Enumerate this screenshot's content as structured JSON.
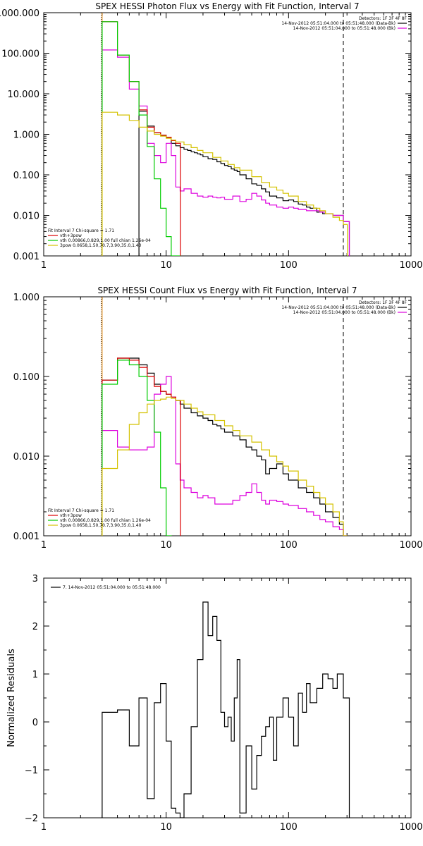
{
  "chart_data": [
    {
      "type": "line",
      "id": "photon",
      "title": "SPEX HESSI Photon Flux vs Energy with Fit Function, Interval 7",
      "xlabel": "",
      "ylabel": "",
      "xscale": "log",
      "yscale": "log",
      "xlim": [
        1,
        1000
      ],
      "ylim": [
        0.001,
        1000
      ],
      "x_ticks": [
        "1",
        "10",
        "100",
        "1000"
      ],
      "y_ticks": [
        "0.001",
        "0.010",
        "0.100",
        "1.000",
        "10.000",
        "100.000",
        "1000.000"
      ],
      "detectors_label": "Detectors: 1F 3F 4F 8F",
      "header_legend": [
        {
          "text": "14-Nov-2012 05:51:04.000 to 05:51:48.000 (Data-Bk)",
          "color": "#000000"
        },
        {
          "text": "14-Nov-2012 05:51:04.000 to 05:51:48.000 (Bk)",
          "color": "#dd00dd"
        }
      ],
      "fit_legend_title": "Fit Interval 7   Chi-square = 1.71",
      "fit_legend": [
        {
          "text": "vth+3pow",
          "color": "#dd0000"
        },
        {
          "text": "vth 0.00866,0.829,1.00  full chian 1.26e-04",
          "color": "#00cc00"
        },
        {
          "text": "3pow 0.0658,1.50,70.7,3.90,35.0,1.40",
          "color": "#d4c200"
        }
      ],
      "vlines": [
        {
          "x": 3,
          "style": "dotted",
          "color": "#000000"
        },
        {
          "x": 3,
          "style": "solid",
          "color": "#e08000"
        },
        {
          "x": 280,
          "style": "dashed",
          "color": "#000000"
        }
      ],
      "series": [
        {
          "name": "Data-Bk",
          "color": "#000000",
          "x": [
            6,
            7,
            8,
            9,
            10,
            11,
            12,
            13,
            14,
            15,
            16,
            17,
            18,
            19,
            20,
            22,
            24,
            26,
            28,
            30,
            32,
            34,
            36,
            38,
            40,
            45,
            50,
            55,
            60,
            65,
            70,
            80,
            90,
            100,
            110,
            120,
            130,
            140,
            150,
            170,
            190,
            210,
            230,
            250,
            280
          ],
          "y": [
            3.7,
            1.6,
            1.1,
            0.95,
            0.85,
            0.6,
            0.52,
            0.47,
            0.43,
            0.4,
            0.37,
            0.35,
            0.33,
            0.31,
            0.28,
            0.25,
            0.24,
            0.21,
            0.19,
            0.17,
            0.16,
            0.14,
            0.13,
            0.12,
            0.1,
            0.08,
            0.06,
            0.055,
            0.045,
            0.038,
            0.03,
            0.027,
            0.023,
            0.024,
            0.022,
            0.019,
            0.018,
            0.016,
            0.015,
            0.012,
            0.011,
            0.011,
            0.01,
            0.01,
            0.007
          ]
        },
        {
          "name": "Bk",
          "color": "#dd00dd",
          "x": [
            3,
            4,
            5,
            6,
            7,
            8,
            9,
            10,
            11,
            12,
            13,
            14,
            16,
            18,
            20,
            22,
            24,
            26,
            28,
            30,
            35,
            40,
            45,
            50,
            55,
            60,
            65,
            70,
            80,
            90,
            100,
            110,
            120,
            140,
            160,
            180,
            200,
            230,
            250,
            280
          ],
          "y": [
            120,
            80,
            13,
            5,
            0.6,
            0.3,
            0.2,
            0.6,
            0.3,
            0.05,
            0.04,
            0.045,
            0.035,
            0.03,
            0.028,
            0.03,
            0.028,
            0.027,
            0.028,
            0.025,
            0.03,
            0.022,
            0.025,
            0.035,
            0.03,
            0.024,
            0.02,
            0.018,
            0.016,
            0.015,
            0.016,
            0.015,
            0.014,
            0.013,
            0.013,
            0.012,
            0.011,
            0.01,
            0.01,
            0.007
          ]
        },
        {
          "name": "vth+3pow",
          "color": "#dd0000",
          "x": [
            3,
            4,
            5,
            6,
            7,
            8,
            9,
            10,
            11,
            12
          ],
          "y": [
            600,
            90,
            20,
            4,
            1.5,
            1.1,
            0.95,
            0.85,
            0.7,
            0.6
          ]
        },
        {
          "name": "vth",
          "color": "#00cc00",
          "x": [
            3,
            4,
            5,
            6,
            7,
            8,
            9,
            10,
            11,
            12
          ],
          "y": [
            600,
            90,
            20,
            3,
            0.5,
            0.08,
            0.015,
            0.003,
            0.001,
            0.001
          ]
        },
        {
          "name": "3pow",
          "color": "#d4c200",
          "x": [
            3,
            4,
            5,
            6,
            7,
            8,
            9,
            10,
            11,
            12,
            14,
            16,
            18,
            20,
            24,
            28,
            32,
            36,
            40,
            50,
            60,
            70,
            80,
            90,
            100,
            120,
            140,
            160,
            180,
            200,
            230,
            260,
            280
          ],
          "y": [
            3.5,
            3,
            2.2,
            1.5,
            1.2,
            1,
            0.9,
            0.8,
            0.72,
            0.65,
            0.55,
            0.47,
            0.4,
            0.35,
            0.27,
            0.22,
            0.18,
            0.15,
            0.13,
            0.09,
            0.065,
            0.05,
            0.042,
            0.035,
            0.03,
            0.022,
            0.018,
            0.015,
            0.013,
            0.011,
            0.009,
            0.0075,
            0.006
          ]
        }
      ]
    },
    {
      "type": "line",
      "id": "count",
      "title": "SPEX HESSI Count Flux vs Energy with Fit Function, Interval 7",
      "xlabel": "",
      "ylabel": "",
      "xscale": "log",
      "yscale": "log",
      "xlim": [
        1,
        1000
      ],
      "ylim": [
        0.001,
        1
      ],
      "x_ticks": [
        "1",
        "10",
        "100",
        "1000"
      ],
      "y_ticks": [
        "0.001",
        "0.010",
        "0.100",
        "1.000"
      ],
      "detectors_label": "Detectors: 1F 3F 4F 8F",
      "header_legend": [
        {
          "text": "14-Nov-2012 05:51:04.000 to 05:51:48.000 (Data-Bk)",
          "color": "#000000"
        },
        {
          "text": "14-Nov-2012 05:51:04.000 to 05:51:48.000 (Bk)",
          "color": "#dd00dd"
        }
      ],
      "fit_legend_title": "Fit Interval 7   Chi-square = 1.71",
      "fit_legend": [
        {
          "text": "vth+3pow",
          "color": "#dd0000"
        },
        {
          "text": "vth 0.00866,0.829,1.00  full chian 1.26e-04",
          "color": "#00cc00"
        },
        {
          "text": "3pow 0.0658,1.50,70.7,3.90,35.0,1.40",
          "color": "#d4c200"
        }
      ],
      "vlines": [
        {
          "x": 3,
          "style": "dotted",
          "color": "#000000"
        },
        {
          "x": 3,
          "style": "solid",
          "color": "#e08000"
        },
        {
          "x": 280,
          "style": "dashed",
          "color": "#000000"
        }
      ],
      "series": [
        {
          "name": "Data-Bk",
          "color": "#000000",
          "x": [
            3,
            4,
            5,
            6,
            7,
            8,
            9,
            10,
            11,
            12,
            13,
            14,
            16,
            18,
            20,
            22,
            24,
            26,
            28,
            30,
            35,
            40,
            45,
            50,
            55,
            60,
            65,
            70,
            80,
            90,
            100,
            120,
            140,
            160,
            180,
            200,
            230,
            260,
            280
          ],
          "y": [
            0.09,
            0.17,
            0.17,
            0.14,
            0.11,
            0.08,
            0.065,
            0.06,
            0.055,
            0.05,
            0.045,
            0.04,
            0.035,
            0.032,
            0.03,
            0.028,
            0.025,
            0.024,
            0.022,
            0.02,
            0.018,
            0.016,
            0.013,
            0.012,
            0.01,
            0.009,
            0.006,
            0.007,
            0.008,
            0.006,
            0.005,
            0.004,
            0.0035,
            0.003,
            0.0025,
            0.002,
            0.0017,
            0.0014,
            0.001
          ]
        },
        {
          "name": "Bk",
          "color": "#dd00dd",
          "x": [
            3,
            4,
            5,
            6,
            7,
            8,
            9,
            10,
            11,
            12,
            13,
            14,
            16,
            18,
            20,
            22,
            25,
            30,
            35,
            40,
            45,
            50,
            55,
            60,
            65,
            70,
            80,
            90,
            100,
            120,
            140,
            160,
            180,
            200,
            230,
            260,
            280
          ],
          "y": [
            0.021,
            0.013,
            0.012,
            0.012,
            0.013,
            0.06,
            0.08,
            0.1,
            0.055,
            0.008,
            0.005,
            0.004,
            0.0035,
            0.003,
            0.0032,
            0.003,
            0.0025,
            0.0025,
            0.0028,
            0.0032,
            0.0035,
            0.0045,
            0.0035,
            0.0028,
            0.0025,
            0.0028,
            0.0027,
            0.0025,
            0.0024,
            0.0022,
            0.002,
            0.0018,
            0.0016,
            0.0015,
            0.0013,
            0.0012,
            0.001
          ]
        },
        {
          "name": "vth+3pow",
          "color": "#dd0000",
          "x": [
            3,
            4,
            5,
            6,
            7,
            8,
            9,
            10,
            11,
            12
          ],
          "y": [
            0.09,
            0.17,
            0.16,
            0.13,
            0.1,
            0.075,
            0.065,
            0.06,
            0.055,
            0.05
          ]
        },
        {
          "name": "vth",
          "color": "#00cc00",
          "x": [
            3,
            4,
            5,
            6,
            7,
            8,
            9,
            10
          ],
          "y": [
            0.08,
            0.16,
            0.14,
            0.1,
            0.05,
            0.02,
            0.004,
            0.001
          ]
        },
        {
          "name": "3pow",
          "color": "#d4c200",
          "x": [
            3,
            4,
            5,
            6,
            7,
            8,
            9,
            10,
            11,
            12,
            14,
            16,
            18,
            20,
            25,
            30,
            35,
            40,
            50,
            60,
            70,
            80,
            90,
            100,
            120,
            140,
            160,
            180,
            200,
            230,
            260,
            280
          ],
          "y": [
            0.007,
            0.012,
            0.025,
            0.035,
            0.045,
            0.05,
            0.052,
            0.055,
            0.053,
            0.05,
            0.045,
            0.04,
            0.036,
            0.033,
            0.028,
            0.024,
            0.021,
            0.018,
            0.015,
            0.012,
            0.01,
            0.0085,
            0.0075,
            0.0065,
            0.005,
            0.0042,
            0.0035,
            0.003,
            0.0025,
            0.002,
            0.0015,
            0.001
          ]
        }
      ]
    },
    {
      "type": "line",
      "id": "residuals",
      "title": "",
      "xlabel": "",
      "ylabel": "Normalized Residuals",
      "xscale": "log",
      "yscale": "linear",
      "xlim": [
        1,
        1000
      ],
      "ylim": [
        -2,
        3
      ],
      "x_ticks": [
        "1",
        "10",
        "100",
        "1000"
      ],
      "y_ticks": [
        "−2",
        "−1",
        "0",
        "1",
        "2",
        "3"
      ],
      "legend": [
        {
          "text": "7. 14-Nov-2012 05:51:04.000 to 05:51:48.000",
          "color": "#000000"
        }
      ],
      "series": [
        {
          "name": "7. 14-Nov-2012 05:51:04.000 to 05:51:48.000",
          "color": "#000000",
          "x": [
            3,
            4,
            5,
            6,
            7,
            8,
            9,
            10,
            11,
            12,
            13,
            14,
            16,
            18,
            20,
            22,
            24,
            26,
            28,
            30,
            32,
            34,
            36,
            38,
            40,
            45,
            50,
            55,
            60,
            65,
            70,
            75,
            80,
            90,
            100,
            110,
            120,
            130,
            140,
            150,
            170,
            190,
            210,
            230,
            250,
            280
          ],
          "y": [
            0.2,
            0.25,
            -0.5,
            0.5,
            -1.6,
            0.4,
            0.8,
            -0.4,
            -1.8,
            -1.9,
            -2.1,
            -1.5,
            -0.1,
            1.3,
            2.5,
            1.8,
            2.2,
            1.7,
            0.2,
            -0.1,
            0.1,
            -0.4,
            0.5,
            1.3,
            -1.9,
            -0.5,
            -1.4,
            -0.7,
            -0.3,
            -0.1,
            0.1,
            -0.8,
            0.1,
            0.5,
            0.1,
            -0.5,
            0.6,
            0.2,
            0.8,
            0.4,
            0.7,
            1.0,
            0.9,
            0.7,
            1.0,
            0.5
          ]
        }
      ]
    }
  ]
}
